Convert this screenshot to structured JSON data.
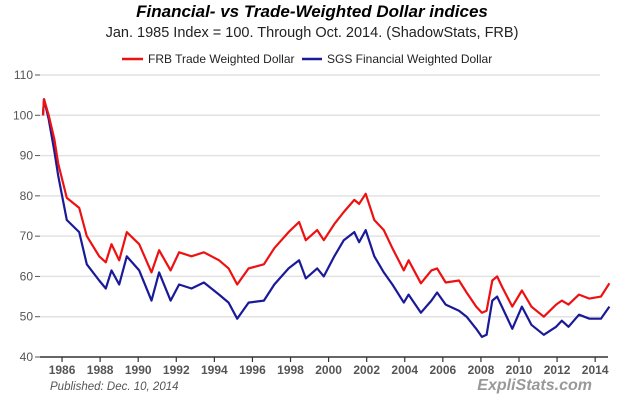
{
  "chart_data": {
    "type": "line",
    "title": "Financial- vs Trade-Weighted Dollar indices",
    "subtitle": "Jan. 1985 Index = 100.  Through Oct. 2014.  (ShadowStats, FRB)",
    "xlabel": "",
    "ylabel": "",
    "xlim": [
      1984.8,
      2014.8
    ],
    "ylim": [
      40,
      110
    ],
    "grid": true,
    "legend_position": "top-center",
    "yticks": [
      "40",
      "50",
      "60",
      "70",
      "80",
      "90",
      "100",
      "110"
    ],
    "xticks": [
      "1986",
      "1988",
      "1990",
      "1992",
      "1994",
      "1996",
      "1998",
      "2000",
      "2002",
      "2004",
      "2006",
      "2008",
      "2010",
      "2012",
      "2014"
    ],
    "x": [
      1985.0,
      1985.05,
      1985.3,
      1985.6,
      1985.8,
      1986.25,
      1986.9,
      1987.3,
      1987.95,
      1988.3,
      1988.6,
      1989.0,
      1989.4,
      1990.05,
      1990.7,
      1991.1,
      1991.7,
      1992.15,
      1992.8,
      1993.45,
      1994.25,
      1994.75,
      1995.2,
      1995.8,
      1996.6,
      1997.15,
      1997.9,
      1998.45,
      1998.8,
      1999.4,
      1999.75,
      2000.3,
      2000.8,
      2001.35,
      2001.6,
      2001.95,
      2002.4,
      2002.9,
      2003.35,
      2003.95,
      2004.2,
      2004.85,
      2005.4,
      2005.7,
      2006.15,
      2006.85,
      2007.25,
      2007.75,
      2008.05,
      2008.3,
      2008.6,
      2008.85,
      2009.1,
      2009.65,
      2010.15,
      2010.65,
      2011.3,
      2011.95,
      2012.25,
      2012.6,
      2013.15,
      2013.7,
      2014.3,
      2014.75
    ],
    "series": [
      {
        "name": "FRB Trade Weighted Dollar",
        "color": "#ee1111",
        "values": [
          100,
          104,
          100,
          94,
          88,
          79.5,
          77,
          70,
          65,
          63.5,
          68,
          64,
          71,
          68,
          61,
          66.5,
          61.5,
          66,
          65,
          66,
          64,
          62,
          58,
          62,
          63,
          67,
          71,
          73.5,
          69,
          71.5,
          69,
          73,
          76,
          79,
          78,
          80.5,
          74,
          71.5,
          67,
          61.5,
          64,
          58.3,
          61.5,
          62,
          58.5,
          59,
          56,
          52.5,
          51,
          51.5,
          59,
          60,
          57.5,
          52.5,
          56.5,
          52.5,
          50,
          53,
          54,
          53,
          55.5,
          54.5,
          55,
          58.3
        ]
      },
      {
        "name": "SGS Financial Weighted Dollar",
        "color": "#1a1a99",
        "values": [
          100,
          104,
          99,
          91,
          85,
          74,
          71,
          63,
          59,
          57,
          61.5,
          58,
          65,
          61.5,
          54,
          61,
          54,
          58,
          57,
          58.5,
          55.5,
          53.5,
          49.5,
          53.5,
          54,
          58,
          62,
          64,
          59.5,
          62,
          60,
          65,
          69,
          71,
          68.5,
          71.5,
          65,
          61,
          58,
          53.5,
          55.5,
          51,
          54,
          56,
          53,
          51.5,
          50,
          47,
          45,
          45.5,
          54,
          55,
          52.5,
          47,
          52.5,
          48,
          45.5,
          47.5,
          49,
          47.5,
          50.5,
          49.5,
          49.5,
          52.5
        ]
      }
    ]
  },
  "footer": {
    "published": "Published: Dec. 10, 2014",
    "brand": "ExpliStats.com"
  }
}
